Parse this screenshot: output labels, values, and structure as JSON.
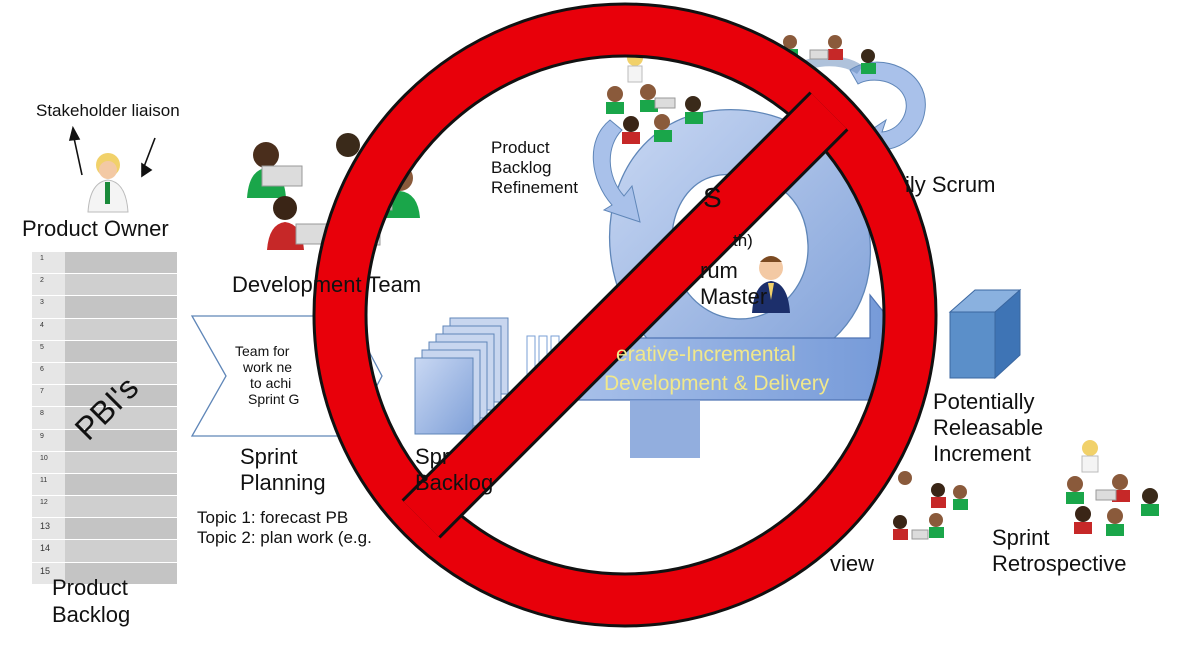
{
  "stakeholder": {
    "label": "Stakeholder liaison"
  },
  "product_owner": {
    "label": "Product Owner"
  },
  "backlog": {
    "row_numbers": [
      "1",
      "2",
      "3",
      "4",
      "5",
      "6",
      "7",
      "8",
      "9",
      "10",
      "11",
      "12",
      "13",
      "14",
      "15"
    ],
    "pbis_label": "PBI's",
    "label_line1": "Product",
    "label_line2": "Backlog"
  },
  "dev_team": {
    "label": "Development Team"
  },
  "planning": {
    "arrow_line1": "Team for",
    "arrow_line2": "work ne",
    "arrow_line3": "to achi",
    "arrow_line4": "Sprint G",
    "label_line1": "Sprint",
    "label_line2": "Planning",
    "topic1": "Topic 1: forecast PB",
    "topic2": "Topic 2: plan work (e.g."
  },
  "sprint_backlog": {
    "label_line1": "Spr",
    "label_line2": "Backlog"
  },
  "refinement": {
    "line1": "Product",
    "line2": "Backlog",
    "line3": "Refinement"
  },
  "sprint_center": {
    "line1": "S",
    "line2": "th)",
    "line3": "rum",
    "line4": "Master"
  },
  "daily_scrum": {
    "label": "ily Scrum"
  },
  "flow": {
    "line1": "erative-Incremental",
    "line2": "Development & Delivery"
  },
  "increment": {
    "line1": "Potentially",
    "line2": "Releasable",
    "line3": "Increment"
  },
  "review": {
    "label": "view"
  },
  "retro": {
    "line1": "Sprint",
    "line2": "Retrospective"
  },
  "colors": {
    "prohibit_red": "#e8000a",
    "cycle_blue": "#9db7e6",
    "cube_blue": "#5b8fc9",
    "shirt_green": "#1aa64a",
    "shirt_red": "#c62828"
  }
}
